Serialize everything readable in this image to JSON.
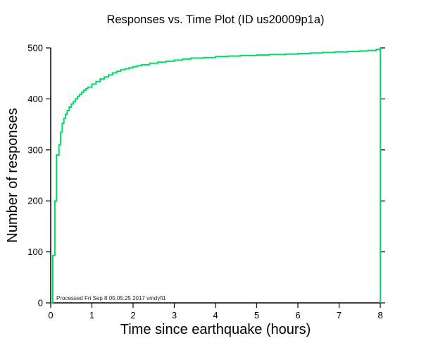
{
  "chart_data": {
    "type": "line",
    "subtype": "step",
    "title": "Responses vs. Time Plot (ID us20009p1a)",
    "xlabel": "Time since earthquake (hours)",
    "ylabel": "Number of responses",
    "annotation": "Processed Fri Sep  8 05:05:25 2017 vmdyfi1",
    "xlim": [
      0,
      8
    ],
    "ylim": [
      0,
      500
    ],
    "xticks": [
      0,
      1,
      2,
      3,
      4,
      5,
      6,
      7,
      8
    ],
    "yticks": [
      0,
      100,
      200,
      300,
      400,
      500
    ],
    "grid": false,
    "legend": "none",
    "line_color": "#00DD66",
    "series": [
      {
        "name": "responses",
        "x": [
          0.0,
          0.05,
          0.1,
          0.14,
          0.2,
          0.24,
          0.28,
          0.32,
          0.36,
          0.4,
          0.45,
          0.5,
          0.55,
          0.6,
          0.65,
          0.7,
          0.75,
          0.8,
          0.85,
          0.9,
          1.0,
          1.1,
          1.2,
          1.3,
          1.4,
          1.5,
          1.6,
          1.7,
          1.8,
          1.9,
          2.0,
          2.1,
          2.2,
          2.4,
          2.6,
          2.8,
          3.0,
          3.2,
          3.4,
          3.7,
          4.0,
          4.3,
          4.6,
          5.0,
          5.3,
          5.7,
          6.0,
          6.3,
          6.6,
          6.9,
          7.2,
          7.5,
          7.7,
          7.9,
          8.0,
          8.0
        ],
        "y": [
          0,
          93,
          200,
          290,
          310,
          335,
          352,
          362,
          370,
          377,
          384,
          390,
          395,
          400,
          405,
          409,
          413,
          417,
          420,
          423,
          429,
          434,
          439,
          443,
          447,
          451,
          454,
          457,
          459,
          461,
          463,
          465,
          467,
          470,
          472,
          474,
          476,
          478,
          480,
          481,
          483,
          484,
          485,
          486,
          487,
          488,
          489,
          490,
          491,
          492,
          493,
          494,
          495,
          497,
          500,
          0
        ]
      }
    ]
  }
}
